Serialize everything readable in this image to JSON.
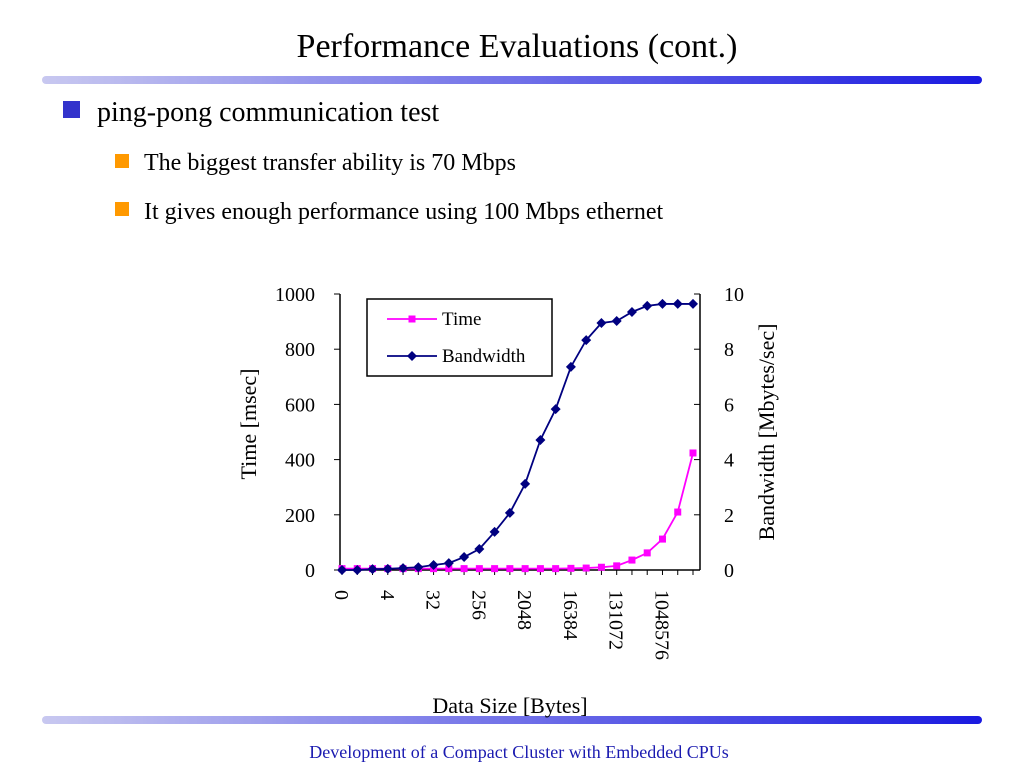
{
  "title": "Performance Evaluations (cont.)",
  "bullet": "ping-pong communication test",
  "sub_bullets": [
    "The biggest transfer ability is 70 Mbps",
    "It gives enough performance using 100 Mbps ethernet"
  ],
  "footer": "Development of a Compact Cluster with Embedded CPUs",
  "chart_data": {
    "type": "line",
    "x_label": "Data Size [Bytes]",
    "y_label": "Time [msec]",
    "y2_label": "Bandwidth [Mbytes/sec]",
    "categories": [
      "0",
      null,
      null,
      "4",
      null,
      null,
      "32",
      null,
      null,
      "256",
      null,
      null,
      "2048",
      null,
      null,
      "16384",
      null,
      null,
      "131072",
      null,
      null,
      "1048576",
      null,
      null
    ],
    "series": [
      {
        "name": "Time",
        "color": "#ff00ff",
        "marker": "square",
        "values": [
          5,
          5,
          5,
          5,
          5,
          5,
          5,
          5,
          5,
          5,
          5,
          5,
          5,
          5,
          5,
          6,
          7,
          10,
          15,
          36,
          62,
          112,
          210,
          424
        ]
      },
      {
        "name": "Bandwidth",
        "color": "#000080",
        "marker": "diamond",
        "axis": "y2",
        "values": [
          0,
          0,
          0.03,
          0.04,
          0.07,
          0.1,
          0.18,
          0.25,
          0.47,
          0.76,
          1.38,
          2.07,
          3.12,
          4.71,
          5.83,
          7.36,
          8.33,
          8.95,
          9.02,
          9.35,
          9.57,
          9.64,
          9.64,
          9.64
        ]
      }
    ],
    "ylim": [
      0,
      1000
    ],
    "yticks": [
      0,
      200,
      400,
      600,
      800,
      1000
    ],
    "y2lim": [
      0,
      10
    ],
    "y2ticks": [
      0,
      2,
      4,
      6,
      8,
      10
    ],
    "legend": "upper left"
  }
}
